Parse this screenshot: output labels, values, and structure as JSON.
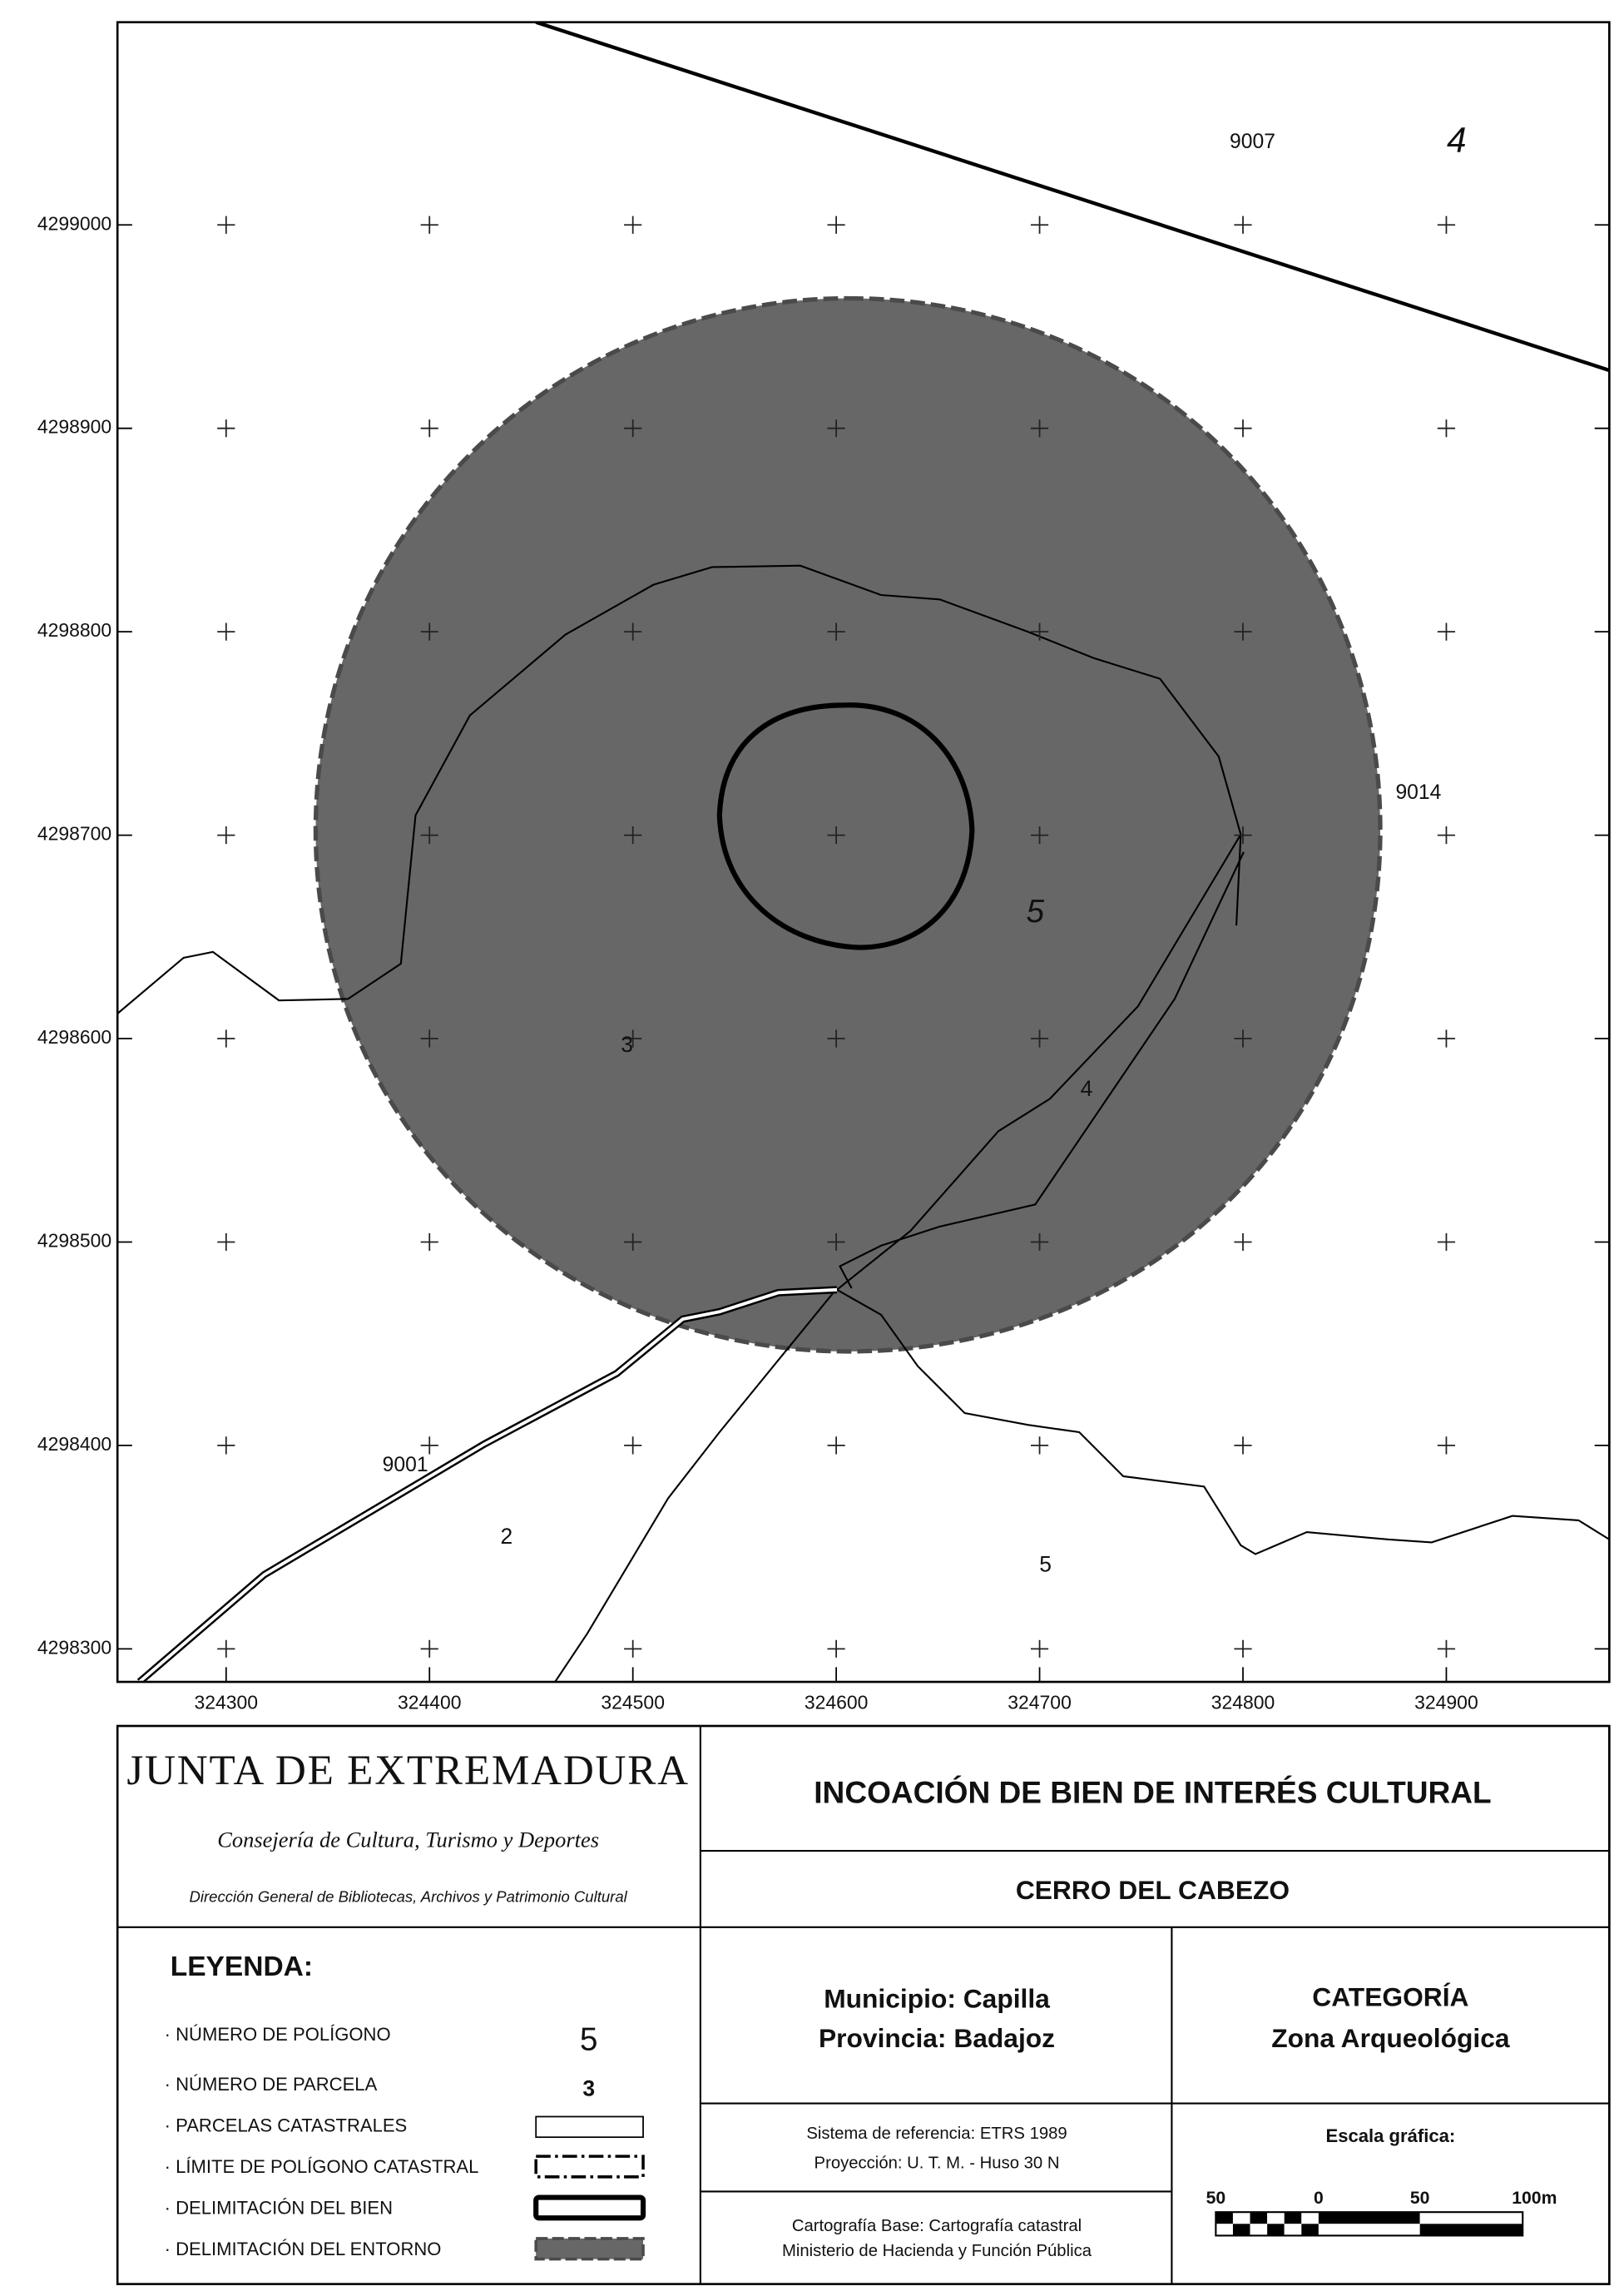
{
  "map": {
    "y_labels": [
      "4299000",
      "4298900",
      "4298800",
      "4298700",
      "4298600",
      "4298500",
      "4298400",
      "4298300"
    ],
    "x_labels": [
      "324300",
      "324400",
      "324500",
      "324600",
      "324700",
      "324800",
      "324900"
    ],
    "labels": [
      "9007",
      "4",
      "9014",
      "5",
      "3",
      "4",
      "9001",
      "2",
      "5"
    ]
  },
  "header": {
    "org": "JUNTA DE EXTREMADURA",
    "department": "Consejería de Cultura, Turismo y Deportes",
    "directorate": "Dirección General de Bibliotecas, Archivos y Patrimonio Cultural",
    "title": "INCOACIÓN DE BIEN DE INTERÉS CULTURAL",
    "site": "CERRO DEL CABEZO"
  },
  "legend": {
    "title": "LEYENDA:",
    "items": [
      "· NÚMERO DE POLÍGONO",
      "· NÚMERO DE PARCELA",
      "· PARCELAS CATASTRALES",
      "· LÍMITE DE POLÍGONO CATASTRAL",
      "· DELIMITACIÓN DEL BIEN",
      "· DELIMITACIÓN DEL ENTORNO"
    ],
    "sample_polygon": "5",
    "sample_parcel": "3"
  },
  "location": {
    "municipality": "Municipio: Capilla",
    "province": "Provincia: Badajoz"
  },
  "category": {
    "title": "CATEGORÍA",
    "value": "Zona Arqueológica"
  },
  "reference": {
    "system": "Sistema de referencia: ETRS 1989",
    "projection": "Proyección: U. T. M. - Huso 30 N"
  },
  "scale": {
    "title": "Escala gráfica:",
    "labels": [
      "50",
      "0",
      "50",
      "100m"
    ]
  },
  "source": {
    "base": "Cartografía Base: Cartografía catastral",
    "ministry": "Ministerio de Hacienda y Función Pública"
  }
}
